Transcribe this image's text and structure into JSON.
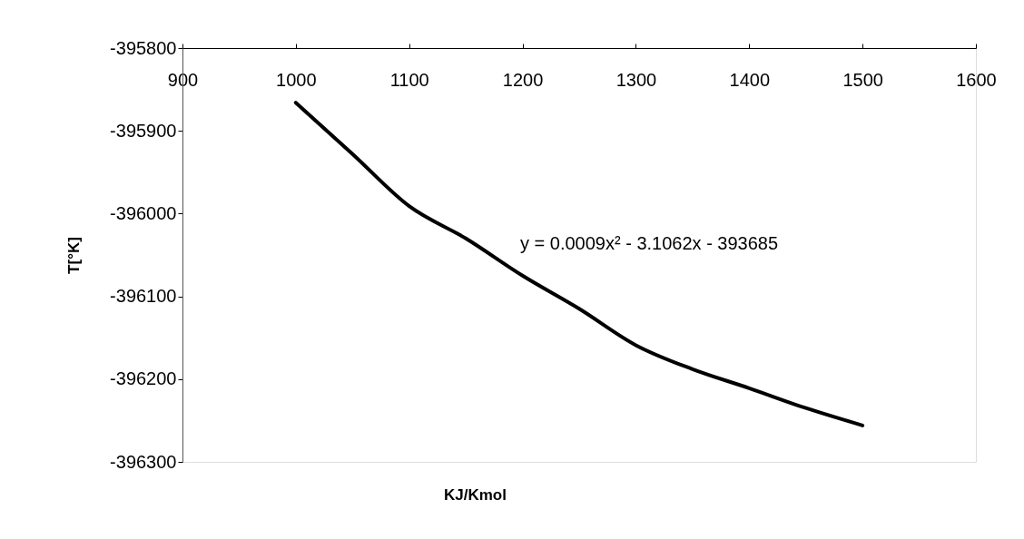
{
  "chart_data": {
    "type": "line",
    "xlabel": "KJ/Kmol",
    "ylabel": "T[°K]",
    "x": [
      1000,
      1050,
      1100,
      1150,
      1200,
      1250,
      1300,
      1350,
      1400,
      1450,
      1500
    ],
    "series": [
      {
        "color": "#000000",
        "values": [
          -395866,
          -395928,
          -395991,
          -396030,
          -396075,
          -396115,
          -396159,
          -396188,
          -396211,
          -396235,
          -396256
        ]
      }
    ],
    "xlim": [
      900,
      1600
    ],
    "xticks": [
      900,
      1000,
      1100,
      1200,
      1300,
      1400,
      1500,
      1600
    ],
    "ylim": [
      -396300,
      -395800
    ],
    "yticks": [
      -396300,
      -396200,
      -396100,
      -396000,
      -395900,
      -395800
    ],
    "annotations": [
      "y = 0.0009x² - 3.1062x - 393685"
    ],
    "grid": false,
    "legend": false,
    "marker": "none",
    "line_style": "solid"
  }
}
